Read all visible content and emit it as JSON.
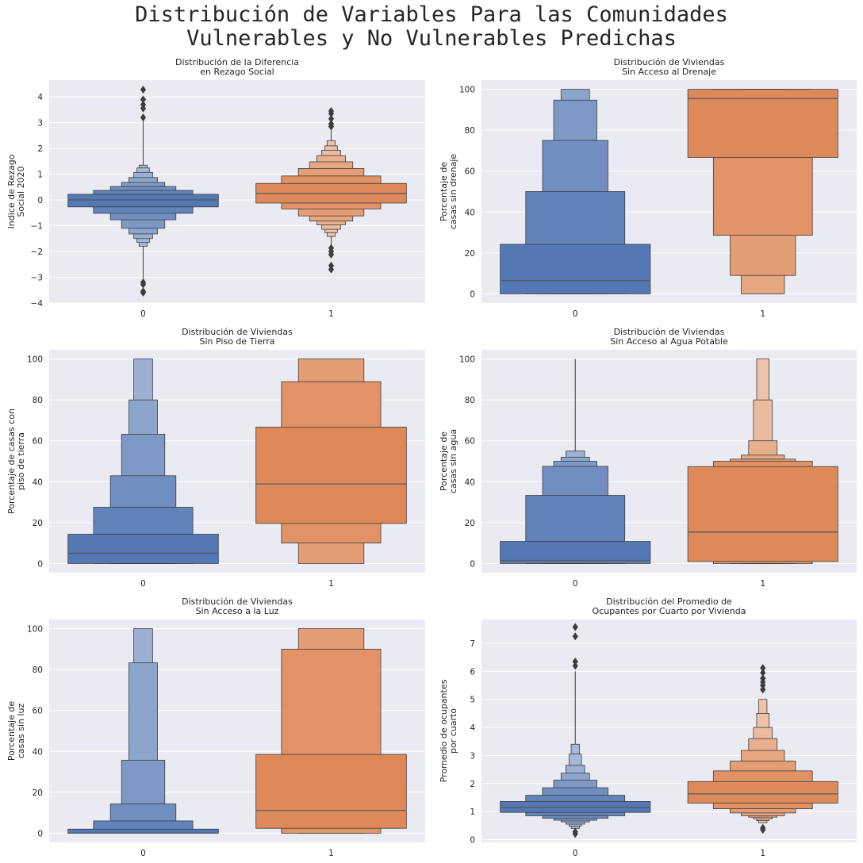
{
  "suptitle": "Distribución de Variables Para las Comunidades\nVulnerables y No Vulnerables Predichas",
  "colors": {
    "background": "#eaeaf2",
    "grid": "#ffffff",
    "edge": "#3d3d3d",
    "group0": "#4c72b0",
    "group1": "#dd8452",
    "median": "#5a5a5a",
    "outlier": "#3d3d3d"
  },
  "chart_data": [
    {
      "type": "boxen",
      "title": "Distribución de la Diferencia\nen Rezago Social",
      "ylabel": "Indice de Rezago\nSocial 2020",
      "categories": [
        "0",
        "1"
      ],
      "ylim": [
        -4,
        4.65
      ],
      "yticks": [
        -4,
        -3,
        -2,
        -1,
        0,
        1,
        2,
        3,
        4
      ],
      "grid": true,
      "series": [
        {
          "median": 0.0,
          "boxes": [
            [
              -0.27,
              0.22
            ],
            [
              -0.52,
              0.37
            ],
            [
              -0.77,
              0.52
            ],
            [
              -1.1,
              0.68
            ],
            [
              -1.32,
              0.87
            ],
            [
              -1.5,
              1.07
            ],
            [
              -1.65,
              1.24
            ],
            [
              -1.8,
              1.35
            ]
          ],
          "whisker": [
            -3.05,
            3.15
          ],
          "outliers": [
            -3.2,
            -3.28,
            -3.55,
            -3.6,
            3.2,
            3.55,
            3.7,
            3.9,
            4.28
          ]
        },
        {
          "median": 0.25,
          "boxes": [
            [
              -0.12,
              0.64
            ],
            [
              -0.35,
              0.93
            ],
            [
              -0.62,
              1.22
            ],
            [
              -0.82,
              1.48
            ],
            [
              -0.97,
              1.72
            ],
            [
              -1.14,
              1.93
            ],
            [
              -1.27,
              2.1
            ],
            [
              -1.42,
              2.3
            ]
          ],
          "whisker": [
            -1.8,
            2.82
          ],
          "outliers": [
            -1.87,
            -2.0,
            -2.12,
            -2.55,
            -2.7,
            2.85,
            2.95,
            3.15,
            3.35,
            3.45
          ]
        }
      ]
    },
    {
      "type": "boxen",
      "title": "Distribución de Viviendas\nSin Acceso al Drenaje",
      "ylabel": "Porcentaje de\ncasas sin drenaje",
      "categories": [
        "0",
        "1"
      ],
      "ylim": [
        -4.5,
        104.5
      ],
      "yticks": [
        0,
        20,
        40,
        60,
        80,
        100
      ],
      "grid": true,
      "series": [
        {
          "median": 6.5,
          "boxes": [
            [
              0,
              24.2
            ],
            [
              0,
              50.0
            ],
            [
              0,
              75.0
            ],
            [
              0,
              94.7
            ],
            [
              0,
              100
            ]
          ],
          "outliers": []
        },
        {
          "median": 95.5,
          "boxes": [
            [
              66.7,
              100
            ],
            [
              28.6,
              100
            ],
            [
              9.0,
              100
            ],
            [
              0,
              100
            ]
          ],
          "outliers": []
        }
      ]
    },
    {
      "type": "boxen",
      "title": "Distribución de Viviendas\nSin Piso de Tierra",
      "ylabel": "Porcentaje de casas con\npiso de tierra",
      "categories": [
        "0",
        "1"
      ],
      "ylim": [
        -4.5,
        104.5
      ],
      "yticks": [
        0,
        20,
        40,
        60,
        80,
        100
      ],
      "grid": true,
      "series": [
        {
          "median": 5.0,
          "boxes": [
            [
              0,
              14.3
            ],
            [
              0,
              27.5
            ],
            [
              0,
              42.9
            ],
            [
              0,
              63.2
            ],
            [
              0,
              80.0
            ],
            [
              0,
              100
            ]
          ],
          "outliers": []
        },
        {
          "median": 38.9,
          "boxes": [
            [
              19.6,
              66.7
            ],
            [
              10.0,
              88.9
            ],
            [
              0,
              100
            ]
          ],
          "outliers": []
        }
      ]
    },
    {
      "type": "boxen",
      "title": "Distribución de Viviendas\nSin Acceso al Agua Potable",
      "ylabel": "Porcentaje de\ncasas sin agua",
      "categories": [
        "0",
        "1"
      ],
      "ylim": [
        -4.5,
        104.5
      ],
      "yticks": [
        0,
        20,
        40,
        60,
        80,
        100
      ],
      "grid": true,
      "series": [
        {
          "median": 1.5,
          "boxes": [
            [
              0,
              10.8
            ],
            [
              0,
              33.3
            ],
            [
              0,
              47.5
            ],
            [
              0,
              50.0
            ],
            [
              0,
              52.0
            ],
            [
              0,
              55.0
            ]
          ],
          "whisker": [
            0,
            100
          ],
          "outliers": []
        },
        {
          "median": 15.4,
          "boxes": [
            [
              1.0,
              47.4
            ],
            [
              0,
              50.0
            ],
            [
              0,
              51.0
            ],
            [
              0,
              53.0
            ],
            [
              0,
              60.0
            ],
            [
              0,
              80.0
            ],
            [
              0,
              100
            ]
          ],
          "outliers": []
        }
      ]
    },
    {
      "type": "boxen",
      "title": "Distribución de Viviendas\nSin Acceso a la Luz",
      "ylabel": "Porcentaje de\ncasas sin luz",
      "categories": [
        "0",
        "1"
      ],
      "ylim": [
        -4.5,
        104.5
      ],
      "yticks": [
        0,
        20,
        40,
        60,
        80,
        100
      ],
      "grid": true,
      "series": [
        {
          "median": 0.0,
          "boxes": [
            [
              0,
              2.0
            ],
            [
              0,
              6.0
            ],
            [
              0,
              14.3
            ],
            [
              0,
              35.7
            ],
            [
              0,
              83.3
            ],
            [
              0,
              100
            ]
          ],
          "outliers": []
        },
        {
          "median": 11.1,
          "boxes": [
            [
              2.4,
              38.5
            ],
            [
              0,
              90.0
            ],
            [
              0,
              100
            ]
          ],
          "outliers": []
        }
      ]
    },
    {
      "type": "boxen",
      "title": "Distribución del Promedio de\nOcupantes por Cuarto por Vivienda",
      "ylabel": "Promedio de ocupantes\npor cuarto",
      "categories": [
        "0",
        "1"
      ],
      "ylim": [
        -0.1,
        7.85
      ],
      "yticks": [
        0,
        1,
        2,
        3,
        4,
        5,
        6,
        7
      ],
      "grid": true,
      "series": [
        {
          "median": 1.15,
          "boxes": [
            [
              0.97,
              1.36
            ],
            [
              0.85,
              1.58
            ],
            [
              0.76,
              1.85
            ],
            [
              0.69,
              2.12
            ],
            [
              0.63,
              2.37
            ],
            [
              0.55,
              2.65
            ],
            [
              0.48,
              3.05
            ],
            [
              0.4,
              3.4
            ]
          ],
          "whisker": [
            0.3,
            6.0
          ],
          "outliers": [
            0.2,
            0.28,
            6.2,
            6.35,
            7.25,
            7.58
          ]
        },
        {
          "median": 1.63,
          "boxes": [
            [
              1.3,
              2.07
            ],
            [
              1.1,
              2.45
            ],
            [
              0.95,
              2.8
            ],
            [
              0.85,
              3.18
            ],
            [
              0.8,
              3.6
            ],
            [
              0.74,
              4.0
            ],
            [
              0.68,
              4.5
            ],
            [
              0.6,
              5.0
            ]
          ],
          "outliers": [
            0.35,
            0.42,
            5.35,
            5.5,
            5.62,
            5.75,
            5.95,
            6.12
          ]
        }
      ]
    }
  ]
}
